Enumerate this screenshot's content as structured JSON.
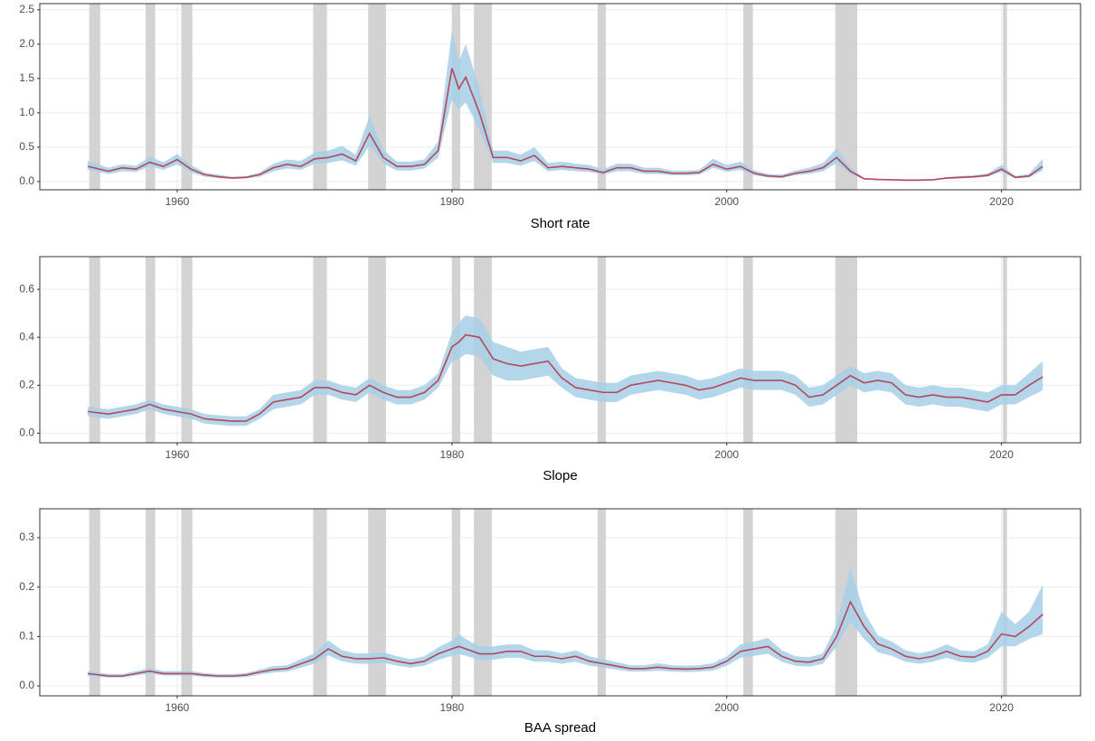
{
  "chart_data": [
    {
      "type": "line",
      "xlabel": "Short rate",
      "x": [
        1953.5,
        1955,
        1956,
        1957,
        1958,
        1959,
        1960,
        1961,
        1962,
        1963,
        1964,
        1965,
        1966,
        1967,
        1968,
        1969,
        1970,
        1971,
        1972,
        1973,
        1974,
        1975,
        1976,
        1977,
        1978,
        1979,
        1980,
        1980.5,
        1981,
        1982,
        1983,
        1984,
        1985,
        1986,
        1987,
        1988,
        1989,
        1990,
        1991,
        1992,
        1993,
        1994,
        1995,
        1996,
        1997,
        1998,
        1999,
        2000,
        2001,
        2002,
        2003,
        2004,
        2005,
        2006,
        2007,
        2008,
        2009,
        2010,
        2011,
        2012,
        2013,
        2014,
        2015,
        2016,
        2017,
        2018,
        2019,
        2020,
        2021,
        2022,
        2023
      ],
      "values": [
        0.22,
        0.15,
        0.2,
        0.18,
        0.28,
        0.22,
        0.32,
        0.18,
        0.1,
        0.07,
        0.05,
        0.06,
        0.1,
        0.2,
        0.25,
        0.22,
        0.33,
        0.35,
        0.4,
        0.3,
        0.7,
        0.35,
        0.22,
        0.22,
        0.25,
        0.45,
        1.65,
        1.35,
        1.52,
        1.0,
        0.35,
        0.35,
        0.3,
        0.38,
        0.2,
        0.22,
        0.2,
        0.18,
        0.13,
        0.2,
        0.2,
        0.15,
        0.15,
        0.12,
        0.12,
        0.13,
        0.25,
        0.18,
        0.22,
        0.12,
        0.08,
        0.07,
        0.12,
        0.15,
        0.2,
        0.35,
        0.15,
        0.04,
        0.03,
        0.025,
        0.02,
        0.02,
        0.025,
        0.05,
        0.06,
        0.07,
        0.09,
        0.18,
        0.06,
        0.08,
        0.22
      ],
      "lower": [
        0.17,
        0.11,
        0.15,
        0.14,
        0.22,
        0.17,
        0.25,
        0.13,
        0.07,
        0.05,
        0.04,
        0.045,
        0.07,
        0.15,
        0.19,
        0.17,
        0.26,
        0.27,
        0.31,
        0.23,
        0.52,
        0.26,
        0.16,
        0.16,
        0.19,
        0.35,
        1.2,
        1.05,
        1.15,
        0.75,
        0.27,
        0.27,
        0.23,
        0.3,
        0.15,
        0.17,
        0.15,
        0.14,
        0.1,
        0.15,
        0.15,
        0.11,
        0.11,
        0.09,
        0.09,
        0.1,
        0.2,
        0.14,
        0.17,
        0.09,
        0.06,
        0.05,
        0.09,
        0.11,
        0.15,
        0.27,
        0.11,
        0.03,
        0.02,
        0.02,
        0.015,
        0.015,
        0.02,
        0.04,
        0.045,
        0.055,
        0.07,
        0.14,
        0.045,
        0.06,
        0.16
      ],
      "upper": [
        0.3,
        0.2,
        0.25,
        0.23,
        0.36,
        0.28,
        0.4,
        0.24,
        0.13,
        0.1,
        0.07,
        0.08,
        0.13,
        0.26,
        0.32,
        0.3,
        0.42,
        0.45,
        0.52,
        0.39,
        0.95,
        0.46,
        0.29,
        0.29,
        0.32,
        0.58,
        2.2,
        1.75,
        2.0,
        1.35,
        0.45,
        0.45,
        0.39,
        0.5,
        0.27,
        0.29,
        0.26,
        0.24,
        0.18,
        0.26,
        0.26,
        0.2,
        0.2,
        0.16,
        0.16,
        0.17,
        0.33,
        0.24,
        0.29,
        0.16,
        0.11,
        0.1,
        0.16,
        0.2,
        0.27,
        0.48,
        0.2,
        0.05,
        0.04,
        0.035,
        0.03,
        0.03,
        0.035,
        0.065,
        0.08,
        0.09,
        0.12,
        0.24,
        0.08,
        0.11,
        0.33
      ],
      "recessions": [
        [
          1953.6,
          1954.4
        ],
        [
          1957.7,
          1958.4
        ],
        [
          1960.3,
          1961.1
        ],
        [
          1969.9,
          1970.9
        ],
        [
          1973.9,
          1975.2
        ],
        [
          1980.0,
          1980.6
        ],
        [
          1981.6,
          1982.9
        ],
        [
          1990.6,
          1991.2
        ],
        [
          2001.2,
          2001.9
        ],
        [
          2007.9,
          2009.5
        ],
        [
          2020.1,
          2020.4
        ]
      ],
      "xlim": [
        1950,
        2025.75
      ],
      "ylim": [
        -0.12,
        2.59
      ],
      "xticks": [
        1960,
        1980,
        2000,
        2020
      ],
      "yticks": [
        {
          "value": 0,
          "label": "0.0"
        },
        0.5,
        {
          "value": 1,
          "label": "1.0"
        },
        1.5,
        {
          "value": 2,
          "label": "2.0"
        },
        2.5
      ],
      "line_color": "#b5475b",
      "band_color": "#a6cfe8",
      "recession_color": "#d3d3d3",
      "grid": true
    },
    {
      "type": "line",
      "xlabel": "Slope",
      "x": [
        1953.5,
        1955,
        1956,
        1957,
        1958,
        1959,
        1960,
        1961,
        1962,
        1963,
        1964,
        1965,
        1966,
        1967,
        1968,
        1969,
        1970,
        1971,
        1972,
        1973,
        1974,
        1975,
        1976,
        1977,
        1978,
        1979,
        1980,
        1980.5,
        1981,
        1982,
        1983,
        1984,
        1985,
        1986,
        1987,
        1988,
        1989,
        1990,
        1991,
        1992,
        1993,
        1994,
        1995,
        1996,
        1997,
        1998,
        1999,
        2000,
        2001,
        2002,
        2003,
        2004,
        2005,
        2006,
        2007,
        2008,
        2009,
        2010,
        2011,
        2012,
        2013,
        2014,
        2015,
        2016,
        2017,
        2018,
        2019,
        2020,
        2021,
        2022,
        2023
      ],
      "values": [
        0.09,
        0.08,
        0.09,
        0.1,
        0.12,
        0.1,
        0.09,
        0.08,
        0.06,
        0.055,
        0.05,
        0.05,
        0.08,
        0.13,
        0.14,
        0.15,
        0.19,
        0.19,
        0.17,
        0.16,
        0.2,
        0.17,
        0.15,
        0.15,
        0.17,
        0.22,
        0.36,
        0.38,
        0.41,
        0.4,
        0.31,
        0.29,
        0.28,
        0.29,
        0.3,
        0.23,
        0.19,
        0.18,
        0.17,
        0.17,
        0.2,
        0.21,
        0.22,
        0.21,
        0.2,
        0.18,
        0.19,
        0.21,
        0.23,
        0.22,
        0.22,
        0.22,
        0.2,
        0.15,
        0.16,
        0.2,
        0.24,
        0.21,
        0.22,
        0.21,
        0.16,
        0.15,
        0.16,
        0.15,
        0.15,
        0.14,
        0.13,
        0.16,
        0.16,
        0.2,
        0.235
      ],
      "lower": [
        0.07,
        0.06,
        0.07,
        0.08,
        0.1,
        0.08,
        0.07,
        0.06,
        0.04,
        0.035,
        0.03,
        0.03,
        0.06,
        0.1,
        0.11,
        0.12,
        0.16,
        0.16,
        0.14,
        0.13,
        0.17,
        0.14,
        0.12,
        0.12,
        0.14,
        0.19,
        0.3,
        0.31,
        0.33,
        0.32,
        0.24,
        0.22,
        0.22,
        0.23,
        0.24,
        0.19,
        0.15,
        0.14,
        0.13,
        0.13,
        0.16,
        0.17,
        0.18,
        0.17,
        0.16,
        0.14,
        0.15,
        0.17,
        0.19,
        0.18,
        0.18,
        0.18,
        0.16,
        0.11,
        0.12,
        0.16,
        0.2,
        0.17,
        0.18,
        0.17,
        0.12,
        0.11,
        0.12,
        0.11,
        0.11,
        0.1,
        0.09,
        0.12,
        0.12,
        0.15,
        0.18
      ],
      "upper": [
        0.11,
        0.1,
        0.11,
        0.12,
        0.14,
        0.12,
        0.11,
        0.1,
        0.08,
        0.075,
        0.07,
        0.07,
        0.1,
        0.16,
        0.17,
        0.18,
        0.22,
        0.22,
        0.2,
        0.19,
        0.23,
        0.2,
        0.18,
        0.18,
        0.2,
        0.25,
        0.42,
        0.46,
        0.49,
        0.48,
        0.38,
        0.36,
        0.34,
        0.35,
        0.36,
        0.27,
        0.23,
        0.22,
        0.21,
        0.21,
        0.24,
        0.25,
        0.26,
        0.25,
        0.24,
        0.22,
        0.23,
        0.25,
        0.27,
        0.26,
        0.26,
        0.26,
        0.24,
        0.19,
        0.2,
        0.24,
        0.28,
        0.25,
        0.26,
        0.25,
        0.2,
        0.19,
        0.2,
        0.19,
        0.19,
        0.18,
        0.17,
        0.2,
        0.2,
        0.25,
        0.3
      ],
      "recessions": [
        [
          1953.6,
          1954.4
        ],
        [
          1957.7,
          1958.4
        ],
        [
          1960.3,
          1961.1
        ],
        [
          1969.9,
          1970.9
        ],
        [
          1973.9,
          1975.2
        ],
        [
          1980.0,
          1980.6
        ],
        [
          1981.6,
          1982.9
        ],
        [
          1990.6,
          1991.2
        ],
        [
          2001.2,
          2001.9
        ],
        [
          2007.9,
          2009.5
        ],
        [
          2020.1,
          2020.4
        ]
      ],
      "xlim": [
        1950,
        2025.75
      ],
      "ylim": [
        -0.04,
        0.736
      ],
      "xticks": [
        1960,
        1980,
        2000,
        2020
      ],
      "yticks": [
        {
          "value": 0,
          "label": "0.0"
        },
        0.2,
        0.4,
        0.6
      ],
      "line_color": "#b5475b",
      "band_color": "#a6cfe8",
      "recession_color": "#d3d3d3",
      "grid": true
    },
    {
      "type": "line",
      "xlabel": "BAA spread",
      "x": [
        1953.5,
        1955,
        1956,
        1957,
        1958,
        1959,
        1960,
        1961,
        1962,
        1963,
        1964,
        1965,
        1966,
        1967,
        1968,
        1969,
        1970,
        1971,
        1972,
        1973,
        1974,
        1975,
        1976,
        1977,
        1978,
        1979,
        1980,
        1980.5,
        1981,
        1982,
        1983,
        1984,
        1985,
        1986,
        1987,
        1988,
        1989,
        1990,
        1991,
        1992,
        1993,
        1994,
        1995,
        1996,
        1997,
        1998,
        1999,
        2000,
        2001,
        2002,
        2003,
        2004,
        2005,
        2006,
        2007,
        2008,
        2009,
        2010,
        2011,
        2012,
        2013,
        2014,
        2015,
        2016,
        2017,
        2018,
        2019,
        2020,
        2021,
        2022,
        2023
      ],
      "values": [
        0.025,
        0.02,
        0.02,
        0.025,
        0.03,
        0.025,
        0.025,
        0.025,
        0.022,
        0.02,
        0.02,
        0.022,
        0.028,
        0.033,
        0.035,
        0.045,
        0.055,
        0.075,
        0.06,
        0.055,
        0.055,
        0.057,
        0.05,
        0.045,
        0.05,
        0.065,
        0.075,
        0.08,
        0.075,
        0.065,
        0.065,
        0.07,
        0.07,
        0.06,
        0.06,
        0.055,
        0.06,
        0.05,
        0.045,
        0.04,
        0.035,
        0.035,
        0.038,
        0.035,
        0.034,
        0.035,
        0.038,
        0.05,
        0.07,
        0.075,
        0.08,
        0.06,
        0.05,
        0.048,
        0.055,
        0.1,
        0.17,
        0.12,
        0.085,
        0.075,
        0.06,
        0.055,
        0.06,
        0.07,
        0.06,
        0.058,
        0.07,
        0.105,
        0.1,
        0.12,
        0.145
      ],
      "lower": [
        0.02,
        0.017,
        0.017,
        0.021,
        0.025,
        0.021,
        0.021,
        0.021,
        0.018,
        0.017,
        0.017,
        0.018,
        0.023,
        0.027,
        0.029,
        0.037,
        0.045,
        0.062,
        0.05,
        0.045,
        0.045,
        0.047,
        0.041,
        0.037,
        0.041,
        0.053,
        0.061,
        0.065,
        0.061,
        0.053,
        0.053,
        0.057,
        0.057,
        0.049,
        0.049,
        0.045,
        0.049,
        0.041,
        0.037,
        0.033,
        0.029,
        0.029,
        0.031,
        0.029,
        0.028,
        0.029,
        0.031,
        0.041,
        0.057,
        0.061,
        0.065,
        0.049,
        0.041,
        0.039,
        0.045,
        0.08,
        0.13,
        0.095,
        0.068,
        0.061,
        0.049,
        0.045,
        0.049,
        0.057,
        0.049,
        0.047,
        0.057,
        0.08,
        0.08,
        0.095,
        0.105
      ],
      "upper": [
        0.03,
        0.024,
        0.024,
        0.03,
        0.036,
        0.03,
        0.03,
        0.03,
        0.026,
        0.024,
        0.024,
        0.026,
        0.033,
        0.04,
        0.042,
        0.054,
        0.066,
        0.092,
        0.072,
        0.066,
        0.066,
        0.068,
        0.06,
        0.054,
        0.06,
        0.078,
        0.092,
        0.105,
        0.095,
        0.08,
        0.08,
        0.084,
        0.084,
        0.072,
        0.072,
        0.066,
        0.072,
        0.06,
        0.054,
        0.048,
        0.042,
        0.042,
        0.046,
        0.042,
        0.041,
        0.042,
        0.046,
        0.06,
        0.084,
        0.09,
        0.097,
        0.072,
        0.06,
        0.058,
        0.066,
        0.125,
        0.24,
        0.15,
        0.102,
        0.09,
        0.072,
        0.066,
        0.072,
        0.084,
        0.072,
        0.07,
        0.084,
        0.15,
        0.125,
        0.15,
        0.205
      ],
      "recessions": [
        [
          1953.6,
          1954.4
        ],
        [
          1957.7,
          1958.4
        ],
        [
          1960.3,
          1961.1
        ],
        [
          1969.9,
          1970.9
        ],
        [
          1973.9,
          1975.2
        ],
        [
          1980.0,
          1980.6
        ],
        [
          1981.6,
          1982.9
        ],
        [
          1990.6,
          1991.2
        ],
        [
          2001.2,
          2001.9
        ],
        [
          2007.9,
          2009.5
        ],
        [
          2020.1,
          2020.4
        ]
      ],
      "xlim": [
        1950,
        2025.75
      ],
      "ylim": [
        -0.02,
        0.3585
      ],
      "xticks": [
        1960,
        1980,
        2000,
        2020
      ],
      "yticks": [
        {
          "value": 0,
          "label": "0.0"
        },
        0.1,
        0.2,
        0.3
      ],
      "line_color": "#b5475b",
      "band_color": "#a6cfe8",
      "recession_color": "#d3d3d3",
      "grid": true
    }
  ]
}
